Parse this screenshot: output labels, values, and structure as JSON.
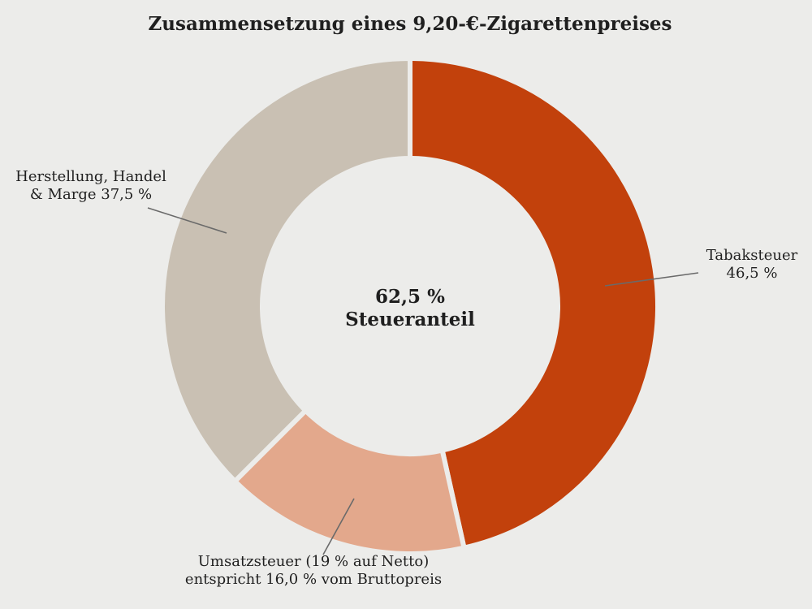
{
  "chart_data": {
    "type": "pie",
    "style": "donut",
    "title": "Zusammensetzung eines 9,20-€-Zigarettenpreises",
    "center_label": {
      "line1": "62,5 %",
      "line2": "Steueranteil"
    },
    "slices": [
      {
        "key": "tabaksteuer",
        "value": 46.5,
        "color": "#c2410c",
        "label_lines": [
          "Tabaksteuer",
          "46,5 %"
        ]
      },
      {
        "key": "umsatzsteuer",
        "value": 16.0,
        "color": "#e3a88c",
        "label_lines": [
          "Umsatzsteuer (19 % auf Netto)",
          "entspricht 16,0 % vom Bruttopreis"
        ]
      },
      {
        "key": "herstellung",
        "value": 37.5,
        "color": "#c9c0b3",
        "label_lines": [
          "Herstellung, Handel",
          "& Marge  37,5 %"
        ]
      }
    ],
    "legend": "none"
  },
  "colors": {
    "background": "#ececea",
    "text": "#1f1f1f",
    "leader_line": "#6a6a6a",
    "slice_gap": "#ececea"
  }
}
